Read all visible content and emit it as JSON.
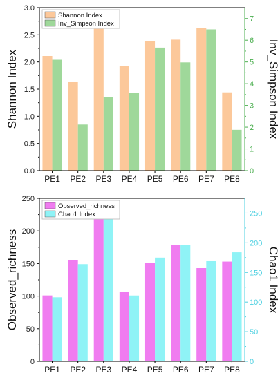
{
  "chart_data": [
    {
      "type": "bar",
      "categories": [
        "PE1",
        "PE2",
        "PE3",
        "PE4",
        "PE5",
        "PE6",
        "PE7",
        "PE8"
      ],
      "left_axis": {
        "label": "Shannon Index",
        "ylim": [
          0,
          3.0
        ],
        "ticks": [
          "0.0",
          "0.5",
          "1.0",
          "1.5",
          "2.0",
          "2.5",
          "3.0"
        ],
        "tick_values": [
          0,
          0.5,
          1.0,
          1.5,
          2.0,
          2.5,
          3.0
        ]
      },
      "right_axis": {
        "label": "Inv_Simpson Index",
        "ylim": [
          0,
          7.5
        ],
        "ticks": [
          "0",
          "1",
          "2",
          "3",
          "4",
          "5",
          "6",
          "7"
        ],
        "tick_values": [
          0,
          1,
          2,
          3,
          4,
          5,
          6,
          7
        ],
        "color": "#4caf50"
      },
      "series": [
        {
          "name": "Shannon Index",
          "axis": "left",
          "color": "#fcc89a",
          "values": [
            2.11,
            1.64,
            2.61,
            1.93,
            2.38,
            2.41,
            2.63,
            1.44
          ]
        },
        {
          "name": "Inv_Simpson Index",
          "axis": "right",
          "color": "#9fd89a",
          "values": [
            5.1,
            2.12,
            3.4,
            3.57,
            5.66,
            4.98,
            6.5,
            1.88
          ]
        }
      ],
      "legend": "top-left",
      "grid": false
    },
    {
      "type": "bar",
      "categories": [
        "PE1",
        "PE2",
        "PE3",
        "PE4",
        "PE5",
        "PE6",
        "PE7",
        "PE8"
      ],
      "left_axis": {
        "label": "Observed_richness",
        "ylim": [
          0,
          250
        ],
        "ticks": [
          "0",
          "50",
          "100",
          "150",
          "200",
          "250"
        ],
        "tick_values": [
          0,
          50,
          100,
          150,
          200,
          250
        ]
      },
      "right_axis": {
        "label": "Chao1 Index",
        "ylim": [
          0,
          275
        ],
        "ticks": [
          "0",
          "50",
          "100",
          "150",
          "200",
          "250"
        ],
        "tick_values": [
          0,
          50,
          100,
          150,
          200,
          250
        ],
        "color": "#4dd0e1"
      },
      "series": [
        {
          "name": "Observed_richness",
          "axis": "left",
          "color": "#f07cf0",
          "values": [
            101,
            155,
            218,
            107,
            151,
            179,
            143,
            153
          ]
        },
        {
          "name": "Chao1 Index",
          "axis": "right",
          "color": "#8ff3f6",
          "values": [
            108,
            164,
            242,
            111,
            175,
            196,
            169,
            184
          ]
        }
      ],
      "legend": "top-left",
      "grid": false
    }
  ]
}
